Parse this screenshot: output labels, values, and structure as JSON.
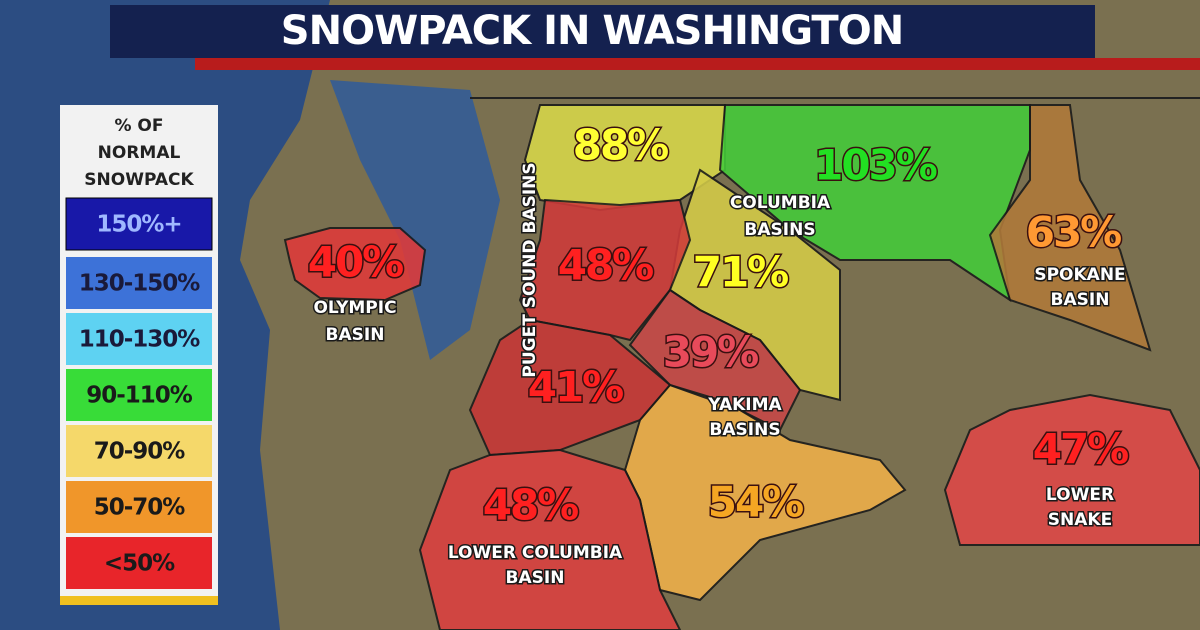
{
  "header": {
    "title": "SNOWPACK IN WASHINGTON"
  },
  "legend": {
    "title": [
      "% OF",
      "NORMAL",
      "SNOWPACK"
    ],
    "items": [
      "150%+",
      "130-150%",
      "110-130%",
      "90-110%",
      "70-90%",
      "50-70%",
      "<50%"
    ]
  },
  "regions": [
    {
      "value": "40%",
      "name": [
        "OLYMPIC",
        "BASIN"
      ]
    },
    {
      "value": "88%"
    },
    {
      "value": "103%",
      "name": [
        "COLUMBIA",
        "BASINS"
      ]
    },
    {
      "value": "71%"
    },
    {
      "value": "63%",
      "name": [
        "SPOKANE",
        "BASIN"
      ]
    },
    {
      "value": "48%",
      "name": [
        "PUGET SOUND BASINS"
      ]
    },
    {
      "value": "39%",
      "name": [
        "YAKIMA",
        "BASINS"
      ]
    },
    {
      "value": "41%"
    },
    {
      "value": "54%"
    },
    {
      "value": "48%",
      "name": [
        "LOWER COLUMBIA",
        "BASIN"
      ]
    },
    {
      "value": "47%",
      "name": [
        "LOWER",
        "SNAKE"
      ]
    }
  ]
}
